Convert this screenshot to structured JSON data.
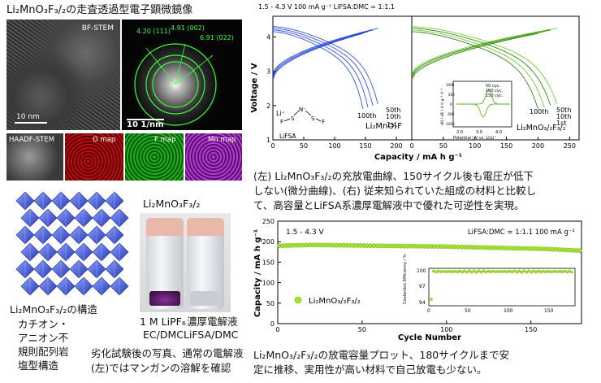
{
  "micro": {
    "title": "Li₂MnO₃F₃/₂の走査透過型電子顕微鏡像",
    "bf_label": "BF-STEM",
    "scale_10nm": "10 nm",
    "fft_scale": "10 1/nm",
    "fft_labels": [
      "4.20 (111)",
      "4.91 (002)",
      "6.91 (022)"
    ],
    "maps": [
      "HAADF-STEM",
      "O map",
      "F map",
      "Mn map"
    ]
  },
  "structure": {
    "caption_line1": "Li₂MnO₃F₃/₂の構造",
    "caption_line2": "カチオン・",
    "caption_line3": "アニオン不",
    "caption_line4": "規則配列岩",
    "caption_line5": "塩型構造"
  },
  "photo": {
    "title": "Li₂MnO₃F₃/₂",
    "left_label1": "1 M LiPF₆",
    "left_label2": "EC/DMC",
    "right_label1": "濃厚電解液",
    "right_label2": "LiFSA/DMC",
    "caption_line1": "劣化試験後の写真、通常の電解液",
    "caption_line2": "(左)ではマンガンの溶解を確認"
  },
  "top_chart": {
    "header": "1.5 - 4.3 V 100 mA g⁻¹ LiFSA:DMC = 1:1.1",
    "ylabel": "Voltage   /   V",
    "xlabel": "Capacity   /   mA h g⁻¹",
    "y_ticks": [
      "1",
      "2",
      "3",
      "4"
    ],
    "x_ticks_left": [
      "0",
      "50",
      "100",
      "150",
      "200"
    ],
    "x_ticks_right": [
      "0",
      "50",
      "100",
      "150",
      "200",
      "250"
    ],
    "left_name": "Li₂MnO₂F",
    "right_name": "Li₂MnO₃/₂F₃/₂",
    "cycle_labels": [
      "50th",
      "10th",
      "100th",
      "1st"
    ],
    "lifsa_label": "LiFSA",
    "inset_legend": [
      "50 cyc.",
      "100 cyc.",
      "150 cyc."
    ],
    "inset_xlabel": "Potential / V vs. Li/Li⁺",
    "inset_ylabel": "dQ / dE  /  A h g⁻¹ V⁻¹",
    "inset_ticks": [
      "2.0",
      "3.0",
      "4.0"
    ],
    "inset_yticks": [
      "1000",
      "500",
      "0",
      "-500",
      "-1000"
    ],
    "colors": {
      "left": "#1f3fd6",
      "right": "#5fce19"
    }
  },
  "caption_top": {
    "line1": "(左) Li₂MnO₃F₃/₂の充放電曲線、150サイクル後も電圧が低下",
    "line2": "しない(微分曲線)、(右) 従来知られていた組成の材料と比較し",
    "line3": "て、高容量とLiFSA系濃厚電解液中で優れた可逆性を実現。"
  },
  "bottom_chart": {
    "voltage_range": "1.5 - 4.3 V",
    "condition": "LiFSA:DMC = 1:1.1   100 mA g⁻¹",
    "ylabel": "Capacity   /   mA h g⁻¹",
    "xlabel": "Cycle Number",
    "y_ticks": [
      "0",
      "50",
      "100",
      "150",
      "200",
      "250"
    ],
    "x_ticks": [
      "0",
      "50",
      "100",
      "150"
    ],
    "legend": "Li₂MnO₃/₂F₃/₂",
    "inset_ylabel": "Coulombic Efficiency / %",
    "inset_yticks": [
      "100",
      "97",
      "94"
    ],
    "inset_xticks": [
      "0",
      "50",
      "100",
      "150"
    ],
    "color": "#a6e22e"
  },
  "caption_bottom": {
    "line1": "Li₂MnO₃/₂F₃/₂の放電容量プロット、180サイクルまで安",
    "line2": "定に推移、実用性が高い材料で自己放電も少ない。"
  },
  "chart_data": [
    {
      "type": "line",
      "title": "",
      "xlabel": "Capacity / mA h g⁻¹",
      "ylabel": "Voltage / V",
      "xlim": [
        0,
        250
      ],
      "ylim": [
        1,
        4.6
      ],
      "series": [
        {
          "name": "Li₂MnO₂F",
          "x": [
            0,
            50,
            100,
            150,
            200
          ],
          "y": [
            3.0,
            3.7,
            3.9,
            4.05,
            4.2
          ]
        },
        {
          "name": "Li₂MnO₃/₂F₃/₂",
          "x": [
            0,
            50,
            100,
            150,
            200,
            250
          ],
          "y": [
            3.0,
            3.6,
            3.8,
            3.95,
            4.1,
            4.3
          ]
        }
      ]
    },
    {
      "type": "scatter",
      "title": "",
      "xlabel": "Cycle Number",
      "ylabel": "Capacity / mA h g⁻¹",
      "xlim": [
        0,
        180
      ],
      "ylim": [
        0,
        250
      ],
      "series": [
        {
          "name": "Li₂MnO₃/₂F₃/₂",
          "x": [
            1,
            20,
            40,
            60,
            80,
            100,
            120,
            140,
            160,
            180
          ],
          "y": [
            190,
            192,
            191,
            190,
            189,
            188,
            186,
            184,
            182,
            178
          ]
        }
      ]
    }
  ]
}
